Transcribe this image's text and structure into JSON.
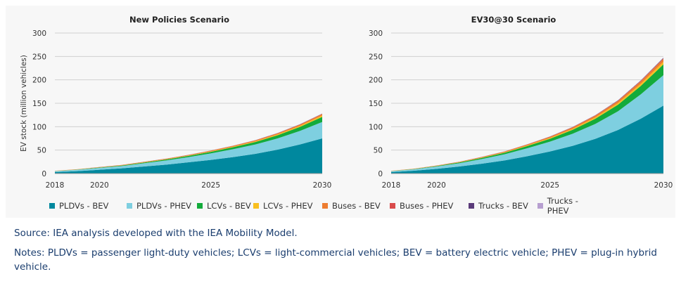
{
  "chart_data": [
    {
      "type": "area",
      "stacked": true,
      "title": "New Policies Scenario",
      "ylabel": "EV stock (million vehicles)",
      "xlabel": "",
      "ylim": [
        0,
        300
      ],
      "yticks": [
        0,
        50,
        100,
        150,
        200,
        250,
        300
      ],
      "xticks": [
        2018,
        2020,
        2025,
        2030
      ],
      "grid": true,
      "x": [
        2018,
        2019,
        2020,
        2021,
        2022,
        2023,
        2024,
        2025,
        2026,
        2027,
        2028,
        2029,
        2030
      ],
      "series": [
        {
          "name": "PLDVs - BEV",
          "values": [
            3,
            5,
            8,
            11,
            15,
            19,
            24,
            29,
            35,
            42,
            51,
            62,
            75
          ]
        },
        {
          "name": "PLDVs - PHEV",
          "values": [
            2,
            3,
            4,
            5,
            7,
            9,
            11,
            14,
            17,
            20,
            24,
            29,
            35
          ]
        },
        {
          "name": "LCVs - BEV",
          "values": [
            0.3,
            0.5,
            0.8,
            1.1,
            1.5,
            2,
            2.6,
            3.3,
            4.2,
            5.3,
            6.7,
            8.5,
            11
          ]
        },
        {
          "name": "LCVs - PHEV",
          "values": [
            0.1,
            0.2,
            0.3,
            0.4,
            0.5,
            0.6,
            0.8,
            1,
            1.2,
            1.5,
            1.9,
            2.4,
            3
          ]
        },
        {
          "name": "Buses - BEV",
          "values": [
            0.4,
            0.5,
            0.6,
            0.7,
            0.9,
            1,
            1.2,
            1.4,
            1.6,
            1.9,
            2.2,
            2.6,
            3
          ]
        },
        {
          "name": "Buses - PHEV",
          "values": [
            0.05,
            0.06,
            0.08,
            0.1,
            0.12,
            0.15,
            0.18,
            0.22,
            0.26,
            0.3,
            0.35,
            0.4,
            0.5
          ]
        },
        {
          "name": "Trucks - BEV",
          "values": [
            0,
            0.01,
            0.02,
            0.03,
            0.05,
            0.07,
            0.1,
            0.13,
            0.17,
            0.22,
            0.28,
            0.35,
            0.45
          ]
        },
        {
          "name": "Trucks - PHEV",
          "values": [
            0,
            0.01,
            0.01,
            0.02,
            0.03,
            0.04,
            0.05,
            0.07,
            0.09,
            0.11,
            0.14,
            0.17,
            0.2
          ]
        }
      ]
    },
    {
      "type": "area",
      "stacked": true,
      "title": "EV30@30 Scenario",
      "ylabel": "",
      "xlabel": "",
      "ylim": [
        0,
        300
      ],
      "yticks": [
        0,
        50,
        100,
        150,
        200,
        250,
        300
      ],
      "xticks": [
        2018,
        2020,
        2025,
        2030
      ],
      "grid": true,
      "x": [
        2018,
        2019,
        2020,
        2021,
        2022,
        2023,
        2024,
        2025,
        2026,
        2027,
        2028,
        2029,
        2030
      ],
      "series": [
        {
          "name": "PLDVs - BEV",
          "values": [
            3,
            6,
            10,
            15,
            21,
            28,
            37,
            47,
            59,
            74,
            93,
            117,
            145
          ]
        },
        {
          "name": "PLDVs - PHEV",
          "values": [
            2,
            3,
            5,
            7,
            10,
            13,
            17,
            21,
            26,
            32,
            40,
            52,
            65
          ]
        },
        {
          "name": "LCVs - BEV",
          "values": [
            0.3,
            0.6,
            1,
            1.6,
            2.4,
            3.4,
            4.7,
            6.3,
            8.3,
            11,
            14,
            18,
            23
          ]
        },
        {
          "name": "LCVs - PHEV",
          "values": [
            0.1,
            0.2,
            0.3,
            0.5,
            0.7,
            1,
            1.3,
            1.7,
            2.2,
            2.8,
            3.5,
            4.4,
            5.5
          ]
        },
        {
          "name": "Buses - BEV",
          "values": [
            0.4,
            0.5,
            0.7,
            0.9,
            1.2,
            1.5,
            1.9,
            2.4,
            3,
            3.7,
            4.5,
            5.5,
            6.5
          ]
        },
        {
          "name": "Buses - PHEV",
          "values": [
            0.05,
            0.07,
            0.1,
            0.13,
            0.17,
            0.22,
            0.28,
            0.35,
            0.44,
            0.55,
            0.68,
            0.84,
            1
          ]
        },
        {
          "name": "Trucks - BEV",
          "values": [
            0,
            0.02,
            0.04,
            0.07,
            0.1,
            0.15,
            0.21,
            0.29,
            0.39,
            0.52,
            0.68,
            0.88,
            1.1
          ]
        },
        {
          "name": "Trucks - PHEV",
          "values": [
            0,
            0.01,
            0.02,
            0.03,
            0.05,
            0.07,
            0.1,
            0.13,
            0.17,
            0.22,
            0.28,
            0.35,
            0.45
          ]
        }
      ]
    }
  ],
  "series_colors": [
    "#00889e",
    "#7ecfe0",
    "#13ab3b",
    "#f9bf1f",
    "#ed7d31",
    "#d94b4b",
    "#5a3b7a",
    "#b79fd0"
  ],
  "legend": [
    "PLDVs - BEV",
    "PLDVs - PHEV",
    "LCVs - BEV",
    "LCVs - PHEV",
    "Buses - BEV",
    "Buses - PHEV",
    "Trucks - BEV",
    "Trucks - PHEV"
  ],
  "source_text": "Source: IEA analysis developed with the IEA Mobility Model.",
  "notes_text": "Notes: PLDVs = passenger light-duty vehicles; LCVs = light-commercial vehicles; BEV = battery electric vehicle; PHEV = plug-in hybrid vehicle."
}
